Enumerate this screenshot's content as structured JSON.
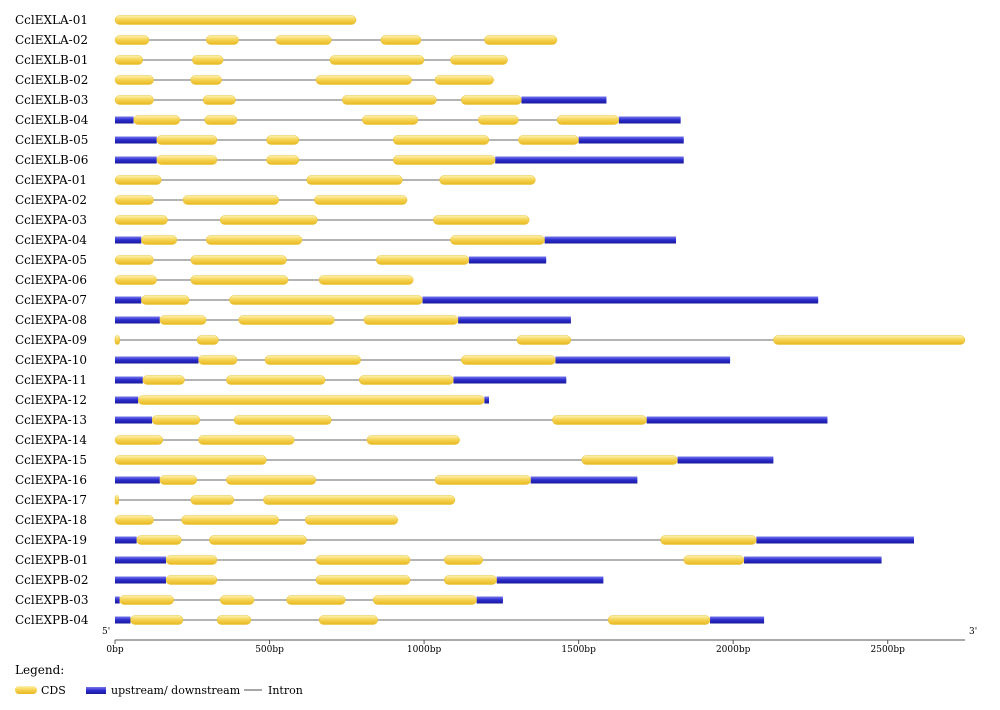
{
  "scale": {
    "min": 0,
    "max": 2750,
    "tick_values": [
      0,
      500,
      1000,
      1500,
      2000,
      2500
    ],
    "tick_labels": [
      "0bp",
      "500bp",
      "1000bp",
      "1500bp",
      "2000bp",
      "2500bp"
    ]
  },
  "end_labels": {
    "left": "5'",
    "right": "3'"
  },
  "legend": {
    "title": "Legend:",
    "cds": "CDS",
    "utr": "upstream/ downstream",
    "intron": "Intron"
  },
  "colors": {
    "cds": "#F5D455",
    "utr": "#3333CC",
    "intron": "#888888"
  },
  "genes": [
    {
      "name": "CclEXLA-01",
      "length": 780,
      "cds": [
        [
          0,
          780
        ]
      ],
      "utr": []
    },
    {
      "name": "CclEXLA-02",
      "length": 1430,
      "cds": [
        [
          0,
          110
        ],
        [
          295,
          400
        ],
        [
          520,
          700
        ],
        [
          860,
          990
        ],
        [
          1195,
          1430
        ]
      ],
      "utr": []
    },
    {
      "name": "CclEXLB-01",
      "length": 1270,
      "cds": [
        [
          0,
          90
        ],
        [
          250,
          350
        ],
        [
          695,
          1000
        ],
        [
          1085,
          1270
        ]
      ],
      "utr": []
    },
    {
      "name": "CclEXLB-02",
      "length": 1225,
      "cds": [
        [
          0,
          125
        ],
        [
          245,
          345
        ],
        [
          650,
          960
        ],
        [
          1035,
          1225
        ]
      ],
      "utr": []
    },
    {
      "name": "CclEXLB-03",
      "length": 1590,
      "cds": [
        [
          0,
          125
        ],
        [
          285,
          390
        ],
        [
          735,
          1040
        ],
        [
          1120,
          1315
        ]
      ],
      "utr": [
        [
          1315,
          1590
        ]
      ]
    },
    {
      "name": "CclEXLB-04",
      "length": 1830,
      "cds": [
        [
          60,
          210
        ],
        [
          290,
          395
        ],
        [
          800,
          980
        ],
        [
          1175,
          1305
        ],
        [
          1430,
          1630
        ]
      ],
      "utr": [
        [
          0,
          60
        ],
        [
          1630,
          1830
        ]
      ]
    },
    {
      "name": "CclEXLB-05",
      "length": 1840,
      "cds": [
        [
          135,
          330
        ],
        [
          490,
          595
        ],
        [
          900,
          1210
        ],
        [
          1305,
          1500
        ]
      ],
      "utr": [
        [
          0,
          135
        ],
        [
          1500,
          1840
        ]
      ]
    },
    {
      "name": "CclEXLB-06",
      "length": 1840,
      "cds": [
        [
          135,
          330
        ],
        [
          490,
          595
        ],
        [
          900,
          1230
        ]
      ],
      "utr": [
        [
          0,
          135
        ],
        [
          1230,
          1840
        ]
      ]
    },
    {
      "name": "CclEXPA-01",
      "length": 1360,
      "cds": [
        [
          0,
          150
        ],
        [
          620,
          930
        ],
        [
          1050,
          1360
        ]
      ],
      "utr": []
    },
    {
      "name": "CclEXPA-02",
      "length": 945,
      "cds": [
        [
          0,
          125
        ],
        [
          220,
          530
        ],
        [
          645,
          945
        ]
      ],
      "utr": []
    },
    {
      "name": "CclEXPA-03",
      "length": 1340,
      "cds": [
        [
          0,
          170
        ],
        [
          340,
          655
        ],
        [
          1030,
          1340
        ]
      ],
      "utr": []
    },
    {
      "name": "CclEXPA-04",
      "length": 1815,
      "cds": [
        [
          85,
          200
        ],
        [
          295,
          605
        ],
        [
          1085,
          1390
        ]
      ],
      "utr": [
        [
          0,
          85
        ],
        [
          1390,
          1815
        ]
      ]
    },
    {
      "name": "CclEXPA-05",
      "length": 1395,
      "cds": [
        [
          0,
          125
        ],
        [
          245,
          555
        ],
        [
          845,
          1145
        ]
      ],
      "utr": [
        [
          1145,
          1395
        ]
      ]
    },
    {
      "name": "CclEXPA-06",
      "length": 965,
      "cds": [
        [
          0,
          135
        ],
        [
          245,
          560
        ],
        [
          660,
          965
        ]
      ],
      "utr": []
    },
    {
      "name": "CclEXPA-07",
      "length": 2275,
      "cds": [
        [
          85,
          240
        ],
        [
          370,
          995
        ]
      ],
      "utr": [
        [
          0,
          85
        ],
        [
          995,
          2275
        ]
      ]
    },
    {
      "name": "CclEXPA-08",
      "length": 1475,
      "cds": [
        [
          145,
          295
        ],
        [
          400,
          710
        ],
        [
          805,
          1110
        ]
      ],
      "utr": [
        [
          0,
          145
        ],
        [
          1110,
          1475
        ]
      ]
    },
    {
      "name": "CclEXPA-09",
      "length": 2750,
      "cds": [
        [
          0,
          15
        ],
        [
          265,
          335
        ],
        [
          1300,
          1475
        ],
        [
          2130,
          2750
        ]
      ],
      "utr": []
    },
    {
      "name": "CclEXPA-10",
      "length": 1990,
      "cds": [
        [
          270,
          395
        ],
        [
          485,
          795
        ],
        [
          1120,
          1425
        ]
      ],
      "utr": [
        [
          0,
          270
        ],
        [
          1425,
          1990
        ]
      ]
    },
    {
      "name": "CclEXPA-11",
      "length": 1460,
      "cds": [
        [
          90,
          225
        ],
        [
          360,
          680
        ],
        [
          790,
          1095
        ]
      ],
      "utr": [
        [
          0,
          90
        ],
        [
          1095,
          1460
        ]
      ]
    },
    {
      "name": "CclEXPA-12",
      "length": 1210,
      "cds": [
        [
          75,
          1195
        ]
      ],
      "utr": [
        [
          0,
          75
        ],
        [
          1195,
          1210
        ]
      ]
    },
    {
      "name": "CclEXPA-13",
      "length": 2305,
      "cds": [
        [
          120,
          275
        ],
        [
          385,
          700
        ],
        [
          1415,
          1720
        ]
      ],
      "utr": [
        [
          0,
          120
        ],
        [
          1720,
          2305
        ]
      ]
    },
    {
      "name": "CclEXPA-14",
      "length": 1115,
      "cds": [
        [
          0,
          155
        ],
        [
          270,
          580
        ],
        [
          815,
          1115
        ]
      ],
      "utr": []
    },
    {
      "name": "CclEXPA-15",
      "length": 2130,
      "cds": [
        [
          0,
          490
        ],
        [
          1510,
          1820
        ]
      ],
      "utr": [
        [
          1820,
          2130
        ]
      ]
    },
    {
      "name": "CclEXPA-16",
      "length": 1690,
      "cds": [
        [
          145,
          265
        ],
        [
          360,
          650
        ],
        [
          1035,
          1345
        ]
      ],
      "utr": [
        [
          0,
          145
        ],
        [
          1345,
          1690
        ]
      ]
    },
    {
      "name": "CclEXPA-17",
      "length": 1100,
      "cds": [
        [
          0,
          12
        ],
        [
          245,
          385
        ],
        [
          480,
          1100
        ]
      ],
      "utr": []
    },
    {
      "name": "CclEXPA-18",
      "length": 915,
      "cds": [
        [
          0,
          125
        ],
        [
          215,
          530
        ],
        [
          615,
          915
        ]
      ],
      "utr": []
    },
    {
      "name": "CclEXPA-19",
      "length": 2585,
      "cds": [
        [
          70,
          215
        ],
        [
          305,
          620
        ],
        [
          1765,
          2075
        ]
      ],
      "utr": [
        [
          0,
          70
        ],
        [
          2075,
          2585
        ]
      ]
    },
    {
      "name": "CclEXPB-01",
      "length": 2480,
      "cds": [
        [
          165,
          330
        ],
        [
          650,
          955
        ],
        [
          1065,
          1190
        ],
        [
          1840,
          2035
        ]
      ],
      "utr": [
        [
          0,
          165
        ],
        [
          2035,
          2480
        ]
      ]
    },
    {
      "name": "CclEXPB-02",
      "length": 1580,
      "cds": [
        [
          165,
          330
        ],
        [
          650,
          955
        ],
        [
          1065,
          1235
        ]
      ],
      "utr": [
        [
          0,
          165
        ],
        [
          1235,
          1580
        ]
      ]
    },
    {
      "name": "CclEXPB-03",
      "length": 1255,
      "cds": [
        [
          15,
          190
        ],
        [
          340,
          450
        ],
        [
          555,
          745
        ],
        [
          835,
          1170
        ]
      ],
      "utr": [
        [
          0,
          15
        ],
        [
          1170,
          1255
        ]
      ]
    },
    {
      "name": "CclEXPB-04",
      "length": 2100,
      "cds": [
        [
          50,
          220
        ],
        [
          330,
          440
        ],
        [
          660,
          850
        ],
        [
          1595,
          1925
        ]
      ],
      "utr": [
        [
          0,
          50
        ],
        [
          1925,
          2100
        ]
      ]
    }
  ]
}
